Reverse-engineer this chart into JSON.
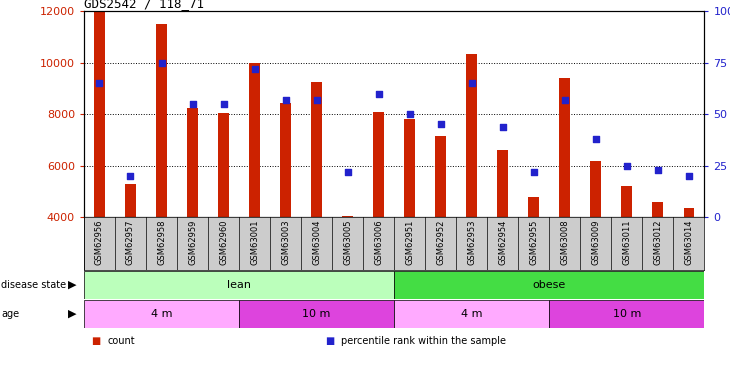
{
  "title": "GDS2542 / 118_71",
  "samples": [
    "GSM62956",
    "GSM62957",
    "GSM62958",
    "GSM62959",
    "GSM62960",
    "GSM63001",
    "GSM63003",
    "GSM63004",
    "GSM63005",
    "GSM63006",
    "GSM62951",
    "GSM62952",
    "GSM62953",
    "GSM62954",
    "GSM62955",
    "GSM63008",
    "GSM63009",
    "GSM63011",
    "GSM63012",
    "GSM63014"
  ],
  "counts": [
    12000,
    5300,
    11500,
    8250,
    8050,
    10000,
    8450,
    9250,
    4050,
    8100,
    7800,
    7150,
    10350,
    6600,
    4800,
    9400,
    6200,
    5200,
    4600,
    4350
  ],
  "percentiles": [
    65,
    20,
    75,
    55,
    55,
    72,
    57,
    57,
    22,
    60,
    50,
    45,
    65,
    44,
    22,
    57,
    38,
    25,
    23,
    20
  ],
  "ylim_left": [
    4000,
    12000
  ],
  "ylim_right": [
    0,
    100
  ],
  "bar_color": "#cc2200",
  "dot_color": "#2222cc",
  "disease_state_groups": [
    {
      "label": "lean",
      "start": 0,
      "end": 10,
      "color": "#bbffbb"
    },
    {
      "label": "obese",
      "start": 10,
      "end": 20,
      "color": "#44dd44"
    }
  ],
  "age_groups": [
    {
      "label": "4 m",
      "start": 0,
      "end": 5,
      "color": "#ffaaff"
    },
    {
      "label": "10 m",
      "start": 5,
      "end": 10,
      "color": "#dd44dd"
    },
    {
      "label": "4 m",
      "start": 10,
      "end": 15,
      "color": "#ffaaff"
    },
    {
      "label": "10 m",
      "start": 15,
      "end": 20,
      "color": "#dd44dd"
    }
  ],
  "legend_items": [
    {
      "label": "count",
      "color": "#cc2200"
    },
    {
      "label": "percentile rank within the sample",
      "color": "#2222cc"
    }
  ],
  "yticks_left": [
    4000,
    6000,
    8000,
    10000,
    12000
  ],
  "yticks_right": [
    0,
    25,
    50,
    75,
    100
  ],
  "ytick_labels_right": [
    "0",
    "25",
    "50",
    "75",
    "100%"
  ],
  "bar_width": 0.35,
  "dot_size": 15,
  "xtick_bg_color": "#cccccc"
}
